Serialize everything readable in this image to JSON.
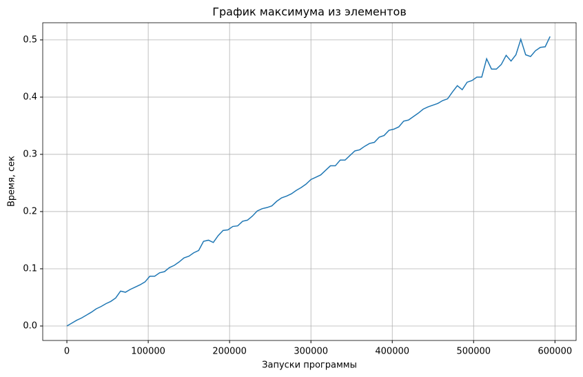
{
  "chart_data": {
    "type": "line",
    "title": "График максимума из элементов",
    "xlabel": "Запуски программы",
    "ylabel": "Время, сек",
    "x": [
      0,
      6000,
      12000,
      18000,
      24000,
      30000,
      36000,
      42000,
      48000,
      54000,
      60000,
      66000,
      72000,
      78000,
      84000,
      90000,
      96000,
      102000,
      108000,
      114000,
      120000,
      126000,
      132000,
      138000,
      144000,
      150000,
      156000,
      162000,
      168000,
      174000,
      180000,
      186000,
      192000,
      198000,
      204000,
      210000,
      216000,
      222000,
      228000,
      234000,
      240000,
      246000,
      252000,
      258000,
      264000,
      270000,
      276000,
      282000,
      288000,
      294000,
      300000,
      306000,
      312000,
      318000,
      324000,
      330000,
      336000,
      342000,
      348000,
      354000,
      360000,
      366000,
      372000,
      378000,
      384000,
      390000,
      396000,
      402000,
      408000,
      414000,
      420000,
      426000,
      432000,
      438000,
      444000,
      450000,
      456000,
      462000,
      468000,
      474000,
      480000,
      486000,
      492000,
      498000,
      504000,
      510000,
      516000,
      522000,
      528000,
      534000,
      540000,
      546000,
      552000,
      558000,
      564000,
      570000,
      576000,
      582000,
      588000,
      594000
    ],
    "series": [
      {
        "color": "#1f77b4",
        "values": [
          0,
          0.005,
          0.01,
          0.014,
          0.019,
          0.024,
          0.03,
          0.034,
          0.039,
          0.043,
          0.049,
          0.061,
          0.059,
          0.064,
          0.068,
          0.072,
          0.077,
          0.087,
          0.087,
          0.093,
          0.095,
          0.102,
          0.106,
          0.112,
          0.119,
          0.122,
          0.128,
          0.132,
          0.148,
          0.15,
          0.146,
          0.158,
          0.167,
          0.168,
          0.174,
          0.175,
          0.183,
          0.185,
          0.192,
          0.201,
          0.205,
          0.207,
          0.21,
          0.218,
          0.224,
          0.227,
          0.231,
          0.237,
          0.242,
          0.248,
          0.256,
          0.26,
          0.264,
          0.272,
          0.28,
          0.28,
          0.29,
          0.29,
          0.298,
          0.306,
          0.308,
          0.314,
          0.319,
          0.321,
          0.33,
          0.333,
          0.342,
          0.344,
          0.348,
          0.358,
          0.36,
          0.366,
          0.372,
          0.379,
          0.383,
          0.386,
          0.389,
          0.394,
          0.397,
          0.409,
          0.42,
          0.413,
          0.426,
          0.429,
          0.435,
          0.435,
          0.467,
          0.449,
          0.449,
          0.457,
          0.473,
          0.463,
          0.474,
          0.501,
          0.474,
          0.471,
          0.481,
          0.487,
          0.488,
          0.506
        ]
      }
    ],
    "xlim": [
      -29700,
      626000
    ],
    "ylim": [
      -0.0253,
      0.53
    ],
    "xticks": [
      0,
      100000,
      200000,
      300000,
      400000,
      500000,
      600000
    ],
    "yticks": [
      {
        "value": 0,
        "label": "0.0"
      },
      0.1,
      0.2,
      0.3,
      0.4,
      0.5
    ],
    "grid": true
  }
}
